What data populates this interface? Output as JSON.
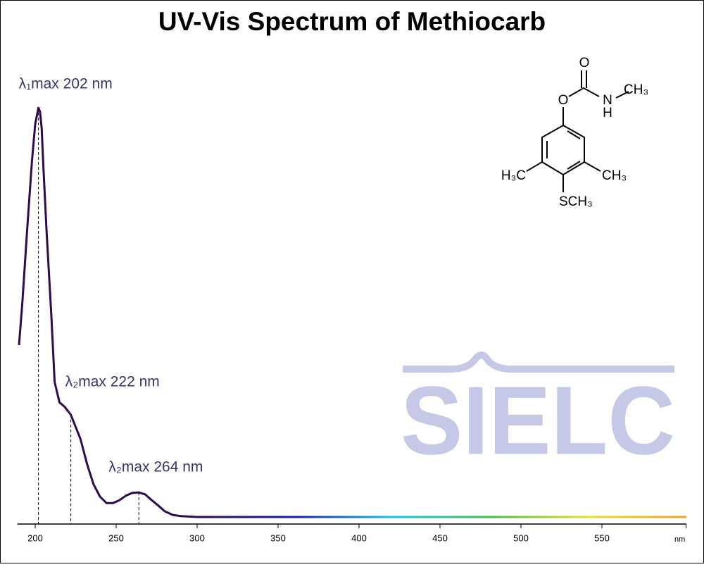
{
  "chart_data": {
    "type": "line",
    "title": "UV-Vis Spectrum of Methiocarb",
    "x_unit": "nm",
    "x": [
      190,
      192,
      195,
      198,
      200,
      202,
      203,
      204,
      205,
      207,
      210,
      212,
      215,
      218,
      222,
      225,
      228,
      232,
      236,
      240,
      244,
      248,
      252,
      256,
      260,
      264,
      268,
      272,
      276,
      280,
      285,
      290,
      300,
      350,
      400,
      450,
      500,
      550,
      602
    ],
    "series": [
      {
        "color": "#2e0a4e",
        "gradient": [
          "#2e0a4e",
          "#1a1ab0",
          "#10c8e8",
          "#40c040",
          "#e8e020",
          "#f0a020"
        ],
        "values": [
          0.42,
          0.52,
          0.7,
          0.87,
          0.96,
          1.0,
          0.99,
          0.95,
          0.86,
          0.7,
          0.49,
          0.33,
          0.28,
          0.27,
          0.25,
          0.22,
          0.19,
          0.13,
          0.08,
          0.05,
          0.034,
          0.034,
          0.041,
          0.052,
          0.059,
          0.06,
          0.055,
          0.041,
          0.028,
          0.014,
          0.005,
          0.002,
          0,
          0,
          0,
          0,
          0,
          0,
          0
        ]
      }
    ],
    "xlim": [
      189,
      602
    ],
    "xticks": [
      200,
      250,
      300,
      350,
      400,
      450,
      500,
      550
    ],
    "ylim": [
      0,
      1
    ],
    "annotations": [
      {
        "text": "λ₁max  202 nm",
        "x": 202,
        "y": 1.0
      },
      {
        "text": "λ₂max  222 nm",
        "x": 222,
        "y": 0.25
      },
      {
        "text": "λ₂max  264 nm",
        "x": 264,
        "y": 0.06
      }
    ],
    "annotation_color": "#34346e"
  },
  "watermark": "SIELC",
  "molecule": {
    "atoms": [
      "O",
      "O",
      "N",
      "H",
      "CH₃",
      "H₃C",
      "CH₃",
      "SCH₃"
    ]
  }
}
